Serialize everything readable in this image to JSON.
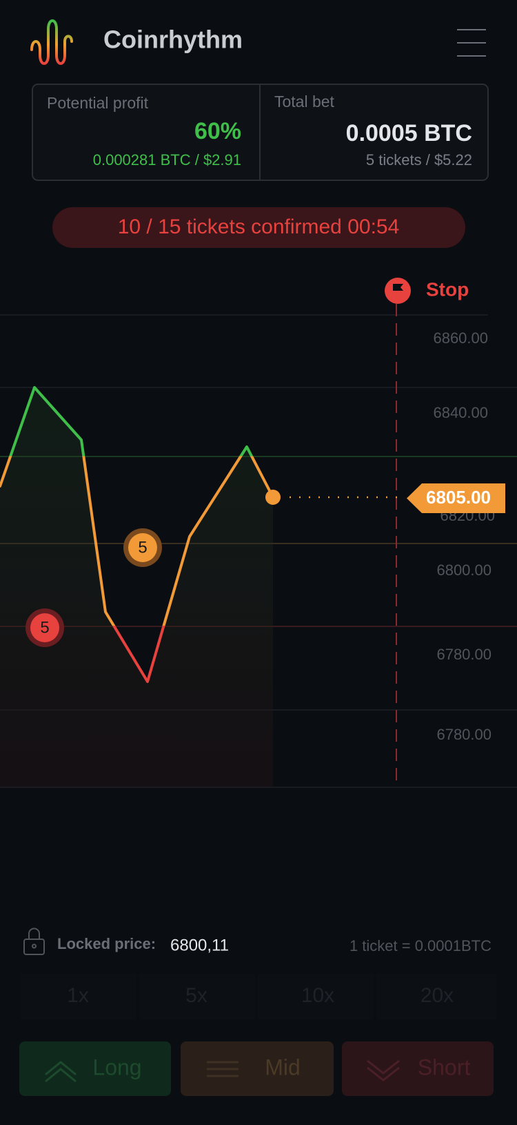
{
  "header": {
    "app_name": "Coinrhythm"
  },
  "summary": {
    "potential_profit": {
      "label": "Potential profit",
      "value": "60%",
      "detail": "0.000281 BTC / $2.91"
    },
    "total_bet": {
      "label": "Total bet",
      "value": "0.0005 BTC",
      "detail": "5 tickets / $5.22"
    }
  },
  "status": {
    "text": "10 / 15 tickets confirmed  00:54"
  },
  "chart": {
    "stop_label": "Stop",
    "y_labels": [
      "6860.00",
      "6840.00",
      "6820.00",
      "6800.00",
      "6780.00",
      "6780.00"
    ],
    "current_price": "6805.00",
    "markers": [
      "5",
      "5"
    ]
  },
  "footer": {
    "locked_price_label": "Locked price:",
    "locked_price_value": "6800,11",
    "ticket_rate": "1 ticket = 0.0001BTC"
  },
  "multipliers": [
    "1x",
    "5x",
    "10x",
    "20x"
  ],
  "actions": [
    "Long",
    "Mid",
    "Short"
  ]
}
